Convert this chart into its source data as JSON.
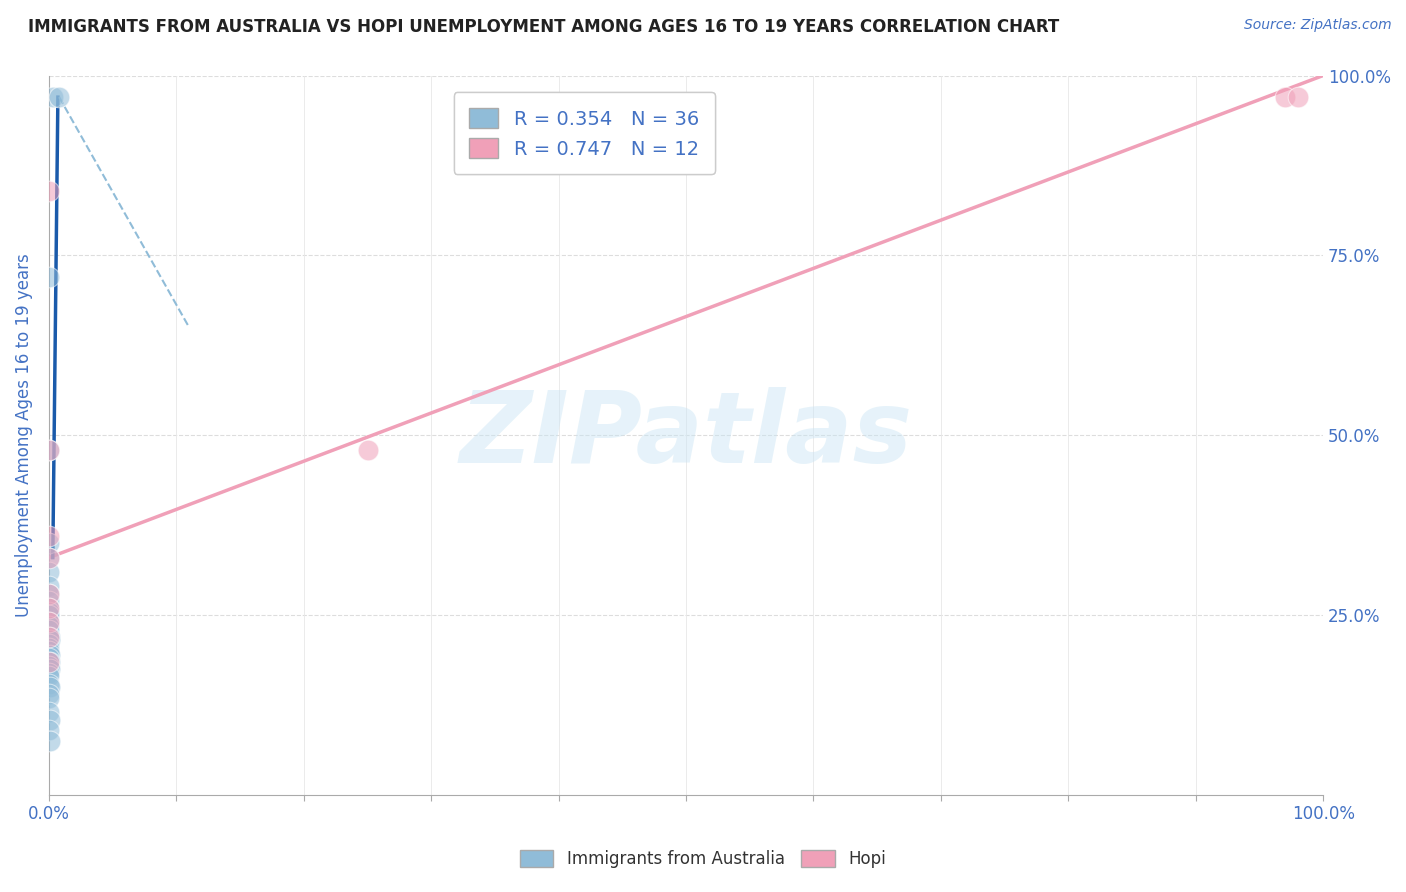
{
  "title": "IMMIGRANTS FROM AUSTRALIA VS HOPI UNEMPLOYMENT AMONG AGES 16 TO 19 YEARS CORRELATION CHART",
  "source": "Source: ZipAtlas.com",
  "ylabel": "Unemployment Among Ages 16 to 19 years",
  "xlim": [
    0,
    1.0
  ],
  "ylim": [
    0,
    1.0
  ],
  "xtick_vals": [
    0.0,
    0.1,
    0.2,
    0.3,
    0.4,
    0.5,
    0.6,
    0.7,
    0.8,
    0.9,
    1.0
  ],
  "xtick_labels": [
    "0.0%",
    "",
    "",
    "",
    "",
    "",
    "",
    "",
    "",
    "",
    "100.0%"
  ],
  "ytick_vals": [
    0.0,
    0.25,
    0.5,
    0.75,
    1.0
  ],
  "ytick_right_labels": [
    "",
    "25.0%",
    "50.0%",
    "75.0%",
    "100.0%"
  ],
  "legend_top": [
    {
      "label": "R = 0.354   N = 36",
      "color": "#a8c8e8"
    },
    {
      "label": "R = 0.747   N = 12",
      "color": "#f4b8c8"
    }
  ],
  "legend_bottom": [
    {
      "label": "Immigrants from Australia",
      "color": "#a8c8e8"
    },
    {
      "label": "Hopi",
      "color": "#f4b8c8"
    }
  ],
  "watermark": "ZIPatlas",
  "blue_scatter": [
    [
      0.003,
      0.97
    ],
    [
      0.008,
      0.97
    ],
    [
      0.0,
      0.72
    ],
    [
      0.0,
      0.48
    ],
    [
      0.0,
      0.35
    ],
    [
      0.0,
      0.33
    ],
    [
      0.0,
      0.31
    ],
    [
      0.0,
      0.29
    ],
    [
      0.0,
      0.28
    ],
    [
      0.0,
      0.27
    ],
    [
      0.0,
      0.26
    ],
    [
      0.0,
      0.255
    ],
    [
      0.0,
      0.25
    ],
    [
      0.0,
      0.24
    ],
    [
      0.0,
      0.235
    ],
    [
      0.0,
      0.23
    ],
    [
      0.001,
      0.22
    ],
    [
      0.001,
      0.215
    ],
    [
      0.0,
      0.21
    ],
    [
      0.0,
      0.205
    ],
    [
      0.0,
      0.2
    ],
    [
      0.001,
      0.195
    ],
    [
      0.0,
      0.19
    ],
    [
      0.001,
      0.185
    ],
    [
      0.0,
      0.18
    ],
    [
      0.001,
      0.175
    ],
    [
      0.0,
      0.17
    ],
    [
      0.0,
      0.165
    ],
    [
      0.0,
      0.155
    ],
    [
      0.001,
      0.15
    ],
    [
      0.0,
      0.14
    ],
    [
      0.0,
      0.135
    ],
    [
      0.0,
      0.115
    ],
    [
      0.001,
      0.105
    ],
    [
      0.0,
      0.09
    ],
    [
      0.001,
      0.075
    ]
  ],
  "pink_scatter": [
    [
      0.0,
      0.84
    ],
    [
      0.0,
      0.48
    ],
    [
      0.25,
      0.48
    ],
    [
      0.0,
      0.36
    ],
    [
      0.0,
      0.33
    ],
    [
      0.0,
      0.28
    ],
    [
      0.0,
      0.26
    ],
    [
      0.0,
      0.24
    ],
    [
      0.0,
      0.22
    ],
    [
      0.0,
      0.185
    ],
    [
      0.97,
      0.97
    ],
    [
      0.98,
      0.97
    ]
  ],
  "blue_solid_line_x": [
    0.003,
    0.007
  ],
  "blue_solid_line_y": [
    0.33,
    0.97
  ],
  "blue_dashed_line_x": [
    0.008,
    0.11
  ],
  "blue_dashed_line_y": [
    0.97,
    0.65
  ],
  "pink_line_x": [
    0.0,
    1.0
  ],
  "pink_line_y": [
    0.33,
    1.0
  ],
  "blue_color": "#90bcd8",
  "pink_color": "#f0a0b8",
  "blue_solid_color": "#1a5aaa",
  "blue_dashed_color": "#90bcd8",
  "pink_line_color": "#f0a0b8",
  "title_color": "#222222",
  "source_color": "#4472c4",
  "axis_label_color": "#4472c4",
  "tick_color": "#4472c4",
  "background_color": "#ffffff",
  "grid_color": "#cccccc",
  "hgrid_color": "#dddddd"
}
